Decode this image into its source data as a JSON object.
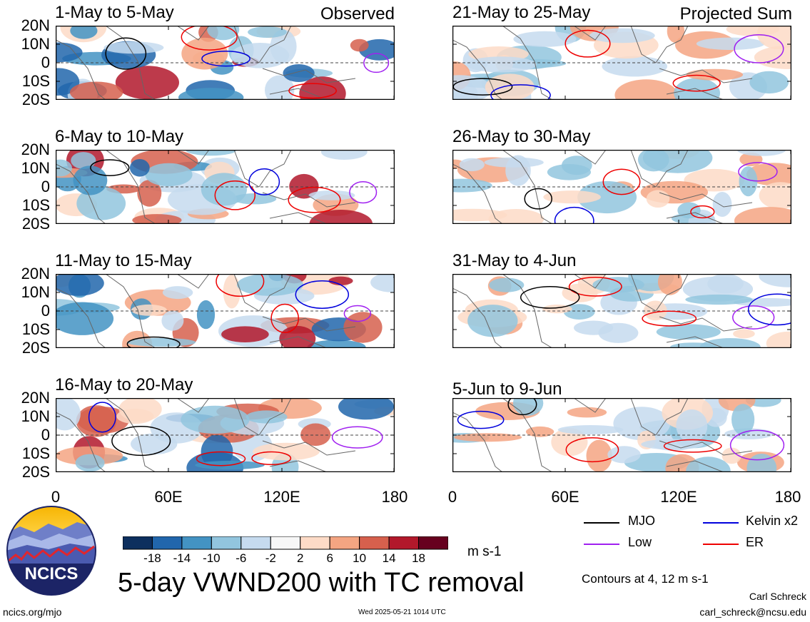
{
  "panels_left": [
    {
      "title": "1-May to 5-May",
      "tag": "Observed"
    },
    {
      "title": "6-May to 10-May",
      "tag": ""
    },
    {
      "title": "11-May to 15-May",
      "tag": ""
    },
    {
      "title": "16-May to 20-May",
      "tag": ""
    }
  ],
  "panels_right": [
    {
      "title": "21-May to 25-May",
      "tag": "Projected Sum"
    },
    {
      "title": "26-May to 30-May",
      "tag": ""
    },
    {
      "title": "31-May to 4-Jun",
      "tag": ""
    },
    {
      "title": "5-Jun to 9-Jun",
      "tag": ""
    }
  ],
  "y_ticks": [
    "20N",
    "10N",
    "0",
    "10S",
    "20S"
  ],
  "x_ticks": [
    "0",
    "60E",
    "120E",
    "180"
  ],
  "colorbar": {
    "labels": [
      "-18",
      "-14",
      "-10",
      "-6",
      "-2",
      "2",
      "6",
      "10",
      "14",
      "18"
    ],
    "colors": [
      "#0d2f5e",
      "#2166ac",
      "#4393c3",
      "#92c5de",
      "#c6dbef",
      "#f7f7f7",
      "#fddbc7",
      "#f4a582",
      "#d6604d",
      "#b2182b",
      "#67001f"
    ],
    "units": "m s-1"
  },
  "legend": {
    "items": [
      {
        "label": "MJO",
        "color": "#000000"
      },
      {
        "label": "Kelvin x2",
        "color": "#0000dd"
      },
      {
        "label": "Low",
        "color": "#a020f0"
      },
      {
        "label": "ER",
        "color": "#ee0000"
      }
    ],
    "contours_note": "Contours at 4, 12 m s-1"
  },
  "main_title": "5-day VWND200 with TC removal",
  "logo_text": "NCICS",
  "footer": {
    "url": "ncics.org/mjo",
    "timestamp": "Wed 2025-05-21 1014 UTC",
    "author": "Carl Schreck",
    "email": "carl_schreck@ncsu.edu"
  }
}
